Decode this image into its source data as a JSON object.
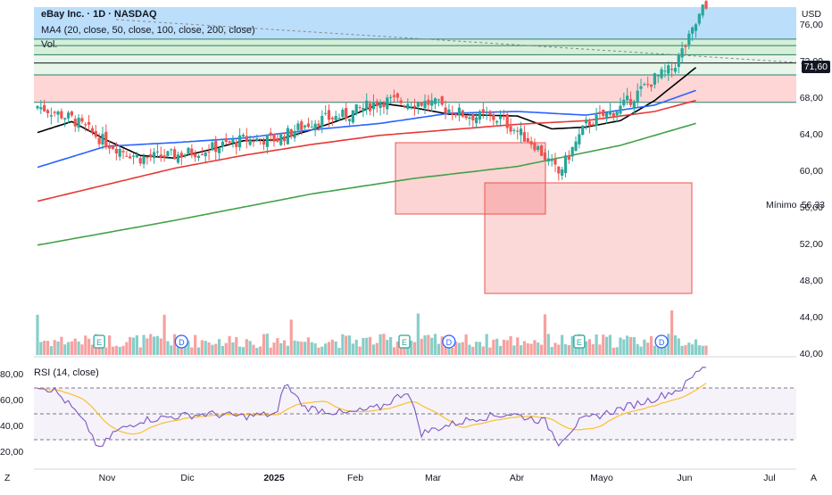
{
  "header": {
    "symbol_title": "eBay Inc. · 1D · NASDAQ",
    "ma_legend": "MA4 (20, close, 50, close, 100, close, 200, close)",
    "volume_legend": "Vol.",
    "currency": "USD"
  },
  "price_axis": {
    "ticks": [
      "76,00",
      "72,00",
      "68,00",
      "64,00",
      "60,00",
      "56,00",
      "52,00",
      "48,00",
      "44,00",
      "40,00"
    ],
    "last_price_tag": "71,60",
    "min_label": "Mínimo",
    "min_value": "56,33"
  },
  "rsi_panel": {
    "legend": "RSI (14, close)",
    "ticks": [
      "80,00",
      "60,00",
      "40,00",
      "20,00"
    ]
  },
  "time_axis": {
    "labels": [
      "Nov",
      "Dic",
      "2025",
      "Feb",
      "Mar",
      "Abr",
      "Mayo",
      "Jun",
      "Jul"
    ],
    "left_button": "Z",
    "right_button": "A"
  },
  "event_markers": [
    "E",
    "D",
    "E",
    "D",
    "E",
    "D"
  ],
  "colors": {
    "up": "#26a69a",
    "down": "#ef5350",
    "ma20": "#000000",
    "ma50": "#2962ff",
    "ma100": "#e53935",
    "ma200": "#43a047",
    "rsi": "#7e57c2",
    "rsi_ma": "#fbc02d"
  },
  "chart_data": {
    "type": "candlestick",
    "title": "eBay Inc. · 1D · NASDAQ",
    "ylim": [
      40,
      78
    ],
    "x": [
      "Nov",
      "Dic",
      "2025",
      "Feb",
      "Mar",
      "Abr",
      "Mayo",
      "Jun",
      "Jul"
    ],
    "series": [
      {
        "name": "MA4 (20, close, 50, close, 100, close, 200, close)",
        "anchors_close": [
          [
            0,
            67.2
          ],
          [
            10,
            65.8
          ],
          [
            20,
            63.2
          ],
          [
            30,
            61.5
          ],
          [
            40,
            61.8
          ],
          [
            50,
            62.5
          ],
          [
            60,
            63.5
          ],
          [
            70,
            63.6
          ],
          [
            80,
            65.5
          ],
          [
            90,
            66.2
          ],
          [
            100,
            67.8
          ],
          [
            115,
            67.5
          ],
          [
            125,
            66.2
          ],
          [
            135,
            65.8
          ],
          [
            145,
            63.0
          ],
          [
            152,
            59.8
          ],
          [
            160,
            65.2
          ],
          [
            170,
            67.0
          ],
          [
            180,
            70.2
          ],
          [
            185,
            71.2
          ],
          [
            190,
            74.5
          ],
          [
            194,
            77.8
          ]
        ]
      },
      {
        "name": "MA20",
        "anchors": [
          [
            0,
            64.3
          ],
          [
            10,
            65.5
          ],
          [
            20,
            63.5
          ],
          [
            30,
            61.8
          ],
          [
            40,
            61.5
          ],
          [
            50,
            62.4
          ],
          [
            60,
            63.4
          ],
          [
            70,
            63.5
          ],
          [
            80,
            64.6
          ],
          [
            90,
            65.9
          ],
          [
            100,
            67.5
          ],
          [
            110,
            67.0
          ],
          [
            120,
            66.3
          ],
          [
            130,
            66.2
          ],
          [
            140,
            66.1
          ],
          [
            150,
            64.7
          ],
          [
            160,
            64.9
          ],
          [
            170,
            65.6
          ],
          [
            180,
            67.8
          ],
          [
            192,
            71.4
          ]
        ]
      },
      {
        "name": "MA50",
        "anchors": [
          [
            0,
            60.5
          ],
          [
            20,
            62.8
          ],
          [
            40,
            63.2
          ],
          [
            60,
            63.7
          ],
          [
            80,
            64.6
          ],
          [
            100,
            65.3
          ],
          [
            120,
            66.4
          ],
          [
            140,
            66.6
          ],
          [
            160,
            66.2
          ],
          [
            180,
            67.3
          ],
          [
            192,
            68.9
          ]
        ]
      },
      {
        "name": "MA100",
        "anchors": [
          [
            0,
            56.8
          ],
          [
            20,
            58.6
          ],
          [
            40,
            60.4
          ],
          [
            60,
            61.8
          ],
          [
            80,
            63.0
          ],
          [
            100,
            64.0
          ],
          [
            120,
            64.6
          ],
          [
            140,
            65.2
          ],
          [
            160,
            65.6
          ],
          [
            180,
            66.6
          ],
          [
            192,
            67.8
          ]
        ]
      },
      {
        "name": "MA200",
        "anchors": [
          [
            0,
            52.0
          ],
          [
            40,
            54.7
          ],
          [
            80,
            57.6
          ],
          [
            110,
            59.3
          ],
          [
            140,
            60.6
          ],
          [
            170,
            62.9
          ],
          [
            192,
            65.3
          ]
        ]
      },
      {
        "name": "Vol.",
        "note": "volume bars per day"
      },
      {
        "name": "RSI (14, close)",
        "anchors": [
          [
            0,
            72
          ],
          [
            5,
            68
          ],
          [
            10,
            55
          ],
          [
            15,
            38
          ],
          [
            18,
            22
          ],
          [
            22,
            35
          ],
          [
            30,
            45
          ],
          [
            40,
            48
          ],
          [
            50,
            50
          ],
          [
            60,
            48
          ],
          [
            70,
            50
          ],
          [
            72,
            74
          ],
          [
            78,
            55
          ],
          [
            90,
            50
          ],
          [
            100,
            55
          ],
          [
            108,
            68
          ],
          [
            112,
            35
          ],
          [
            118,
            40
          ],
          [
            128,
            47
          ],
          [
            138,
            50
          ],
          [
            148,
            44
          ],
          [
            152,
            28
          ],
          [
            158,
            44
          ],
          [
            170,
            54
          ],
          [
            180,
            62
          ],
          [
            188,
            70
          ],
          [
            194,
            87
          ]
        ]
      }
    ],
    "zones": [
      {
        "kind": "band",
        "from": 74.5,
        "to": 78,
        "color": "#bbdefb"
      },
      {
        "kind": "band",
        "from": 72.8,
        "to": 74.5,
        "color": "#d6efd8"
      },
      {
        "kind": "band",
        "from": 70.6,
        "to": 72.8,
        "color": "#e8f5e9"
      },
      {
        "kind": "band",
        "from": 67.6,
        "to": 70.6,
        "color": "#ffd6d6"
      }
    ],
    "rsi_ylim": [
      10,
      90
    ],
    "rsi_levels": [
      70,
      50,
      30
    ]
  }
}
